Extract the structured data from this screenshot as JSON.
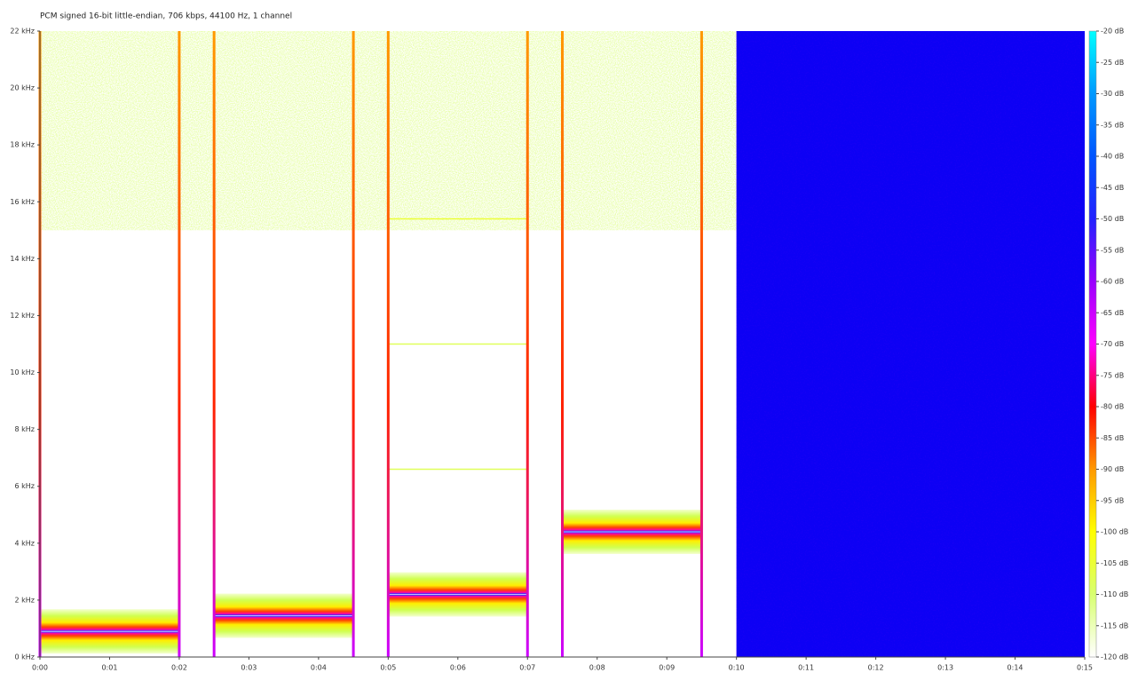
{
  "chart_data": {
    "type": "spectrogram",
    "title": "PCM signed 16-bit little-endian, 706 kbps, 44100 Hz, 1 channel",
    "xlim": [
      0,
      15
    ],
    "xticks": [
      {
        "value": 0,
        "label": "0:00"
      },
      {
        "value": 1,
        "label": "0:01"
      },
      {
        "value": 2,
        "label": "0:02"
      },
      {
        "value": 3,
        "label": "0:03"
      },
      {
        "value": 4,
        "label": "0:04"
      },
      {
        "value": 5,
        "label": "0:05"
      },
      {
        "value": 6,
        "label": "0:06"
      },
      {
        "value": 7,
        "label": "0:07"
      },
      {
        "value": 8,
        "label": "0:08"
      },
      {
        "value": 9,
        "label": "0:09"
      },
      {
        "value": 10,
        "label": "0:10"
      },
      {
        "value": 11,
        "label": "0:11"
      },
      {
        "value": 12,
        "label": "0:12"
      },
      {
        "value": 13,
        "label": "0:13"
      },
      {
        "value": 14,
        "label": "0:14"
      },
      {
        "value": 15,
        "label": "0:15"
      }
    ],
    "ylim": [
      0,
      22
    ],
    "yticks": [
      {
        "value": 0,
        "label": "0 kHz"
      },
      {
        "value": 2,
        "label": "2 kHz"
      },
      {
        "value": 4,
        "label": "4 kHz"
      },
      {
        "value": 6,
        "label": "6 kHz"
      },
      {
        "value": 8,
        "label": "8 kHz"
      },
      {
        "value": 10,
        "label": "10 kHz"
      },
      {
        "value": 12,
        "label": "12 kHz"
      },
      {
        "value": 14,
        "label": "14 kHz"
      },
      {
        "value": 16,
        "label": "16 kHz"
      },
      {
        "value": 18,
        "label": "18 kHz"
      },
      {
        "value": 20,
        "label": "20 kHz"
      },
      {
        "value": 22,
        "label": "22 kHz"
      }
    ],
    "clim": [
      -120,
      -20
    ],
    "cticks": [
      {
        "value": -20,
        "label": "-20 dB"
      },
      {
        "value": -25,
        "label": "-25 dB"
      },
      {
        "value": -30,
        "label": "-30 dB"
      },
      {
        "value": -35,
        "label": "-35 dB"
      },
      {
        "value": -40,
        "label": "-40 dB"
      },
      {
        "value": -45,
        "label": "-45 dB"
      },
      {
        "value": -50,
        "label": "-50 dB"
      },
      {
        "value": -55,
        "label": "-55 dB"
      },
      {
        "value": -60,
        "label": "-60 dB"
      },
      {
        "value": -65,
        "label": "-65 dB"
      },
      {
        "value": -70,
        "label": "-70 dB"
      },
      {
        "value": -75,
        "label": "-75 dB"
      },
      {
        "value": -80,
        "label": "-80 dB"
      },
      {
        "value": -85,
        "label": "-85 dB"
      },
      {
        "value": -90,
        "label": "-90 dB"
      },
      {
        "value": -95,
        "label": "-95 dB"
      },
      {
        "value": -100,
        "label": "-100 dB"
      },
      {
        "value": -105,
        "label": "-105 dB"
      },
      {
        "value": -110,
        "label": "-110 dB"
      },
      {
        "value": -115,
        "label": "-115 dB"
      },
      {
        "value": -120,
        "label": "-120 dB"
      }
    ],
    "colormap": [
      "#ffffff",
      "#d8ff70",
      "#ffff00",
      "#ff9900",
      "#ff0000",
      "#ff00ff",
      "#9900ff",
      "#2222ff",
      "#0055ff",
      "#0099ff",
      "#00ffff"
    ],
    "bands": [
      {
        "start": 0,
        "end": 10,
        "low": 15,
        "high": 22,
        "level": -112
      },
      {
        "start": 10,
        "end": 15,
        "low": 0,
        "high": 22,
        "level": -50
      }
    ],
    "tones": [
      {
        "start": 0,
        "end": 2,
        "frequency": 0.9,
        "level": -30
      },
      {
        "start": 2.5,
        "end": 4.5,
        "frequency": 1.45,
        "level": -30
      },
      {
        "start": 5,
        "end": 7,
        "frequency": 2.2,
        "level": -30
      },
      {
        "start": 5,
        "end": 7,
        "frequency": 6.6,
        "level": -108
      },
      {
        "start": 5,
        "end": 7,
        "frequency": 11,
        "level": -108
      },
      {
        "start": 5,
        "end": 7,
        "frequency": 15.4,
        "level": -105
      },
      {
        "start": 7.5,
        "end": 9.5,
        "frequency": 4.4,
        "level": -30
      }
    ],
    "transients": [
      0,
      2,
      2.5,
      4.5,
      5,
      7,
      7.5,
      9.5
    ]
  }
}
